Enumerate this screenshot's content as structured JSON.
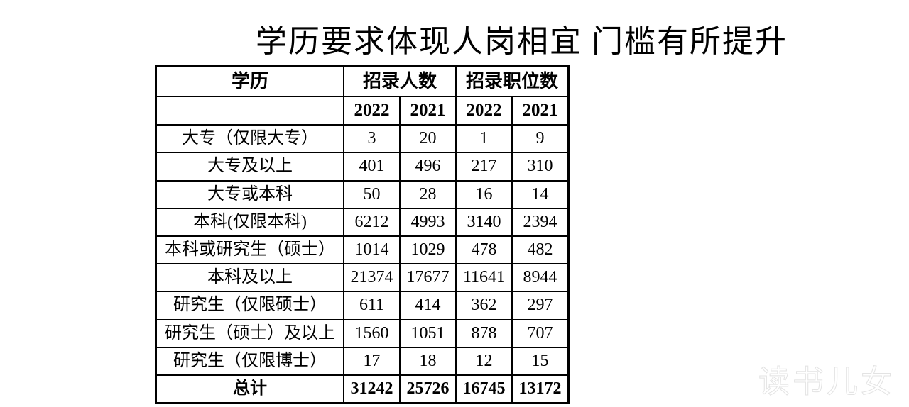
{
  "title": "学历要求体现人岗相宜 门槛有所提升",
  "watermark": "读书儿女",
  "table": {
    "header": {
      "col_edu": "学历",
      "col_people": "招录人数",
      "col_positions": "招录职位数",
      "years": [
        "2022",
        "2021",
        "2022",
        "2021"
      ]
    },
    "rows": [
      {
        "label": "大专（仅限大专）",
        "v": [
          "3",
          "20",
          "1",
          "9"
        ]
      },
      {
        "label": "大专及以上",
        "v": [
          "401",
          "496",
          "217",
          "310"
        ]
      },
      {
        "label": "大专或本科",
        "v": [
          "50",
          "28",
          "16",
          "14"
        ]
      },
      {
        "label": "本科(仅限本科)",
        "v": [
          "6212",
          "4993",
          "3140",
          "2394"
        ]
      },
      {
        "label": "本科或研究生（硕士）",
        "v": [
          "1014",
          "1029",
          "478",
          "482"
        ]
      },
      {
        "label": "本科及以上",
        "v": [
          "21374",
          "17677",
          "11641",
          "8944"
        ]
      },
      {
        "label": "研究生（仅限硕士）",
        "v": [
          "611",
          "414",
          "362",
          "297"
        ]
      },
      {
        "label": "研究生（硕士）及以上",
        "v": [
          "1560",
          "1051",
          "878",
          "707"
        ]
      },
      {
        "label": "研究生（仅限博士）",
        "v": [
          "17",
          "18",
          "12",
          "15"
        ]
      }
    ],
    "total": {
      "label": "总计",
      "v": [
        "31242",
        "25726",
        "16745",
        "13172"
      ]
    },
    "colors": {
      "border": "#000000",
      "background": "#ffffff",
      "text": "#000000"
    },
    "font": {
      "body_size_pt": 24,
      "header_size_pt": 26,
      "family": "SimSun / Times New Roman"
    }
  }
}
